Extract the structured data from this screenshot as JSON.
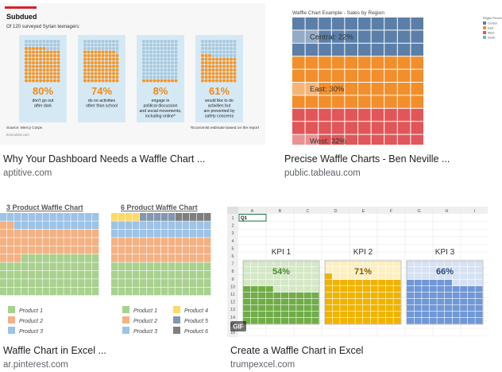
{
  "results": [
    {
      "title": "Why Your Dashboard Needs a Waffle Chart ...",
      "domain": "aptitive.com",
      "image": {
        "heading": "Subdued",
        "subheading": "Of 120 surveyed Syrian teenagers:",
        "accent": "#d6212c",
        "panels": [
          {
            "pct": "80%",
            "value": 0.8,
            "lines": [
              "don't go out",
              "after dark"
            ]
          },
          {
            "pct": "74%",
            "value": 0.74,
            "lines": [
              "do no activities",
              "other than school"
            ]
          },
          {
            "pct": "8%",
            "value": 0.08,
            "lines": [
              "engage in",
              "political discussion",
              "and social movements,",
              "including online*"
            ]
          },
          {
            "pct": "61%",
            "value": 0.61,
            "lines": [
              "would like to do",
              "activities but",
              "are prevented by",
              "safety concerns"
            ]
          }
        ],
        "source": "Source: Mercy Corps",
        "footnote": "*Economist estimate based on the report",
        "credit": "Economist.com"
      }
    },
    {
      "title": "Precise Waffle Charts - Ben Neville ...",
      "domain": "public.tableau.com",
      "image": {
        "heading": "Waffle Chart Example - Sales by Region",
        "legend_title": "Region Percentage",
        "legend": [
          {
            "label": "Central",
            "color": "#5b7fa8"
          },
          {
            "label": "East",
            "color": "#f28e2b"
          },
          {
            "label": "West",
            "color": "#e15759"
          },
          {
            "label": "South",
            "color": "#76b7b2"
          }
        ],
        "labels": [
          {
            "text": "Central: 22%"
          },
          {
            "text": "East: 30%"
          },
          {
            "text": "West: 32%"
          }
        ]
      }
    },
    {
      "title": "Waffle Chart in Excel ...",
      "domain": "ar.pinterest.com",
      "image": {
        "chart1_title": "3 Product Waffle Chart",
        "chart2_title": "6 Product Waffle Chart",
        "legend1": [
          {
            "label": "Product 1",
            "color": "#a9d18e"
          },
          {
            "label": "Product 2",
            "color": "#f4b183"
          },
          {
            "label": "Product 3",
            "color": "#9dc3e6"
          }
        ],
        "legend2": [
          {
            "label": "Product 1",
            "color": "#a9d18e"
          },
          {
            "label": "Product 2",
            "color": "#f4b183"
          },
          {
            "label": "Product 3",
            "color": "#9dc3e6"
          },
          {
            "label": "Product 4",
            "color": "#ffd966"
          },
          {
            "label": "Product 5",
            "color": "#8497b0"
          },
          {
            "label": "Product 6",
            "color": "#7f7f7f"
          }
        ]
      }
    },
    {
      "title": "Create a Waffle Chart in Excel",
      "domain": "trumpexcel.com",
      "image": {
        "name_box": "Q1",
        "columns": [
          "A",
          "B",
          "C",
          "D",
          "E",
          "F",
          "G",
          "H",
          "I"
        ],
        "rows": [
          "1",
          "2",
          "3",
          "4",
          "5",
          "6",
          "7",
          "8",
          "9",
          "10",
          "11",
          "12",
          "13",
          "14",
          "15",
          "16"
        ],
        "badge": "GIF",
        "kpis": [
          {
            "label": "KPI 1",
            "pct": "54%",
            "value": 0.54,
            "color": "#70ad47",
            "light": "#d5e8c6",
            "text_color": "#4a8a2a"
          },
          {
            "label": "KPI 2",
            "pct": "71%",
            "value": 0.71,
            "color": "#f0b400",
            "light": "#fcefc0",
            "text_color": "#8a5a00"
          },
          {
            "label": "KPI 3",
            "pct": "66%",
            "value": 0.66,
            "color": "#7097d6",
            "light": "#d6e2f4",
            "text_color": "#2a4a7a"
          }
        ]
      }
    }
  ]
}
